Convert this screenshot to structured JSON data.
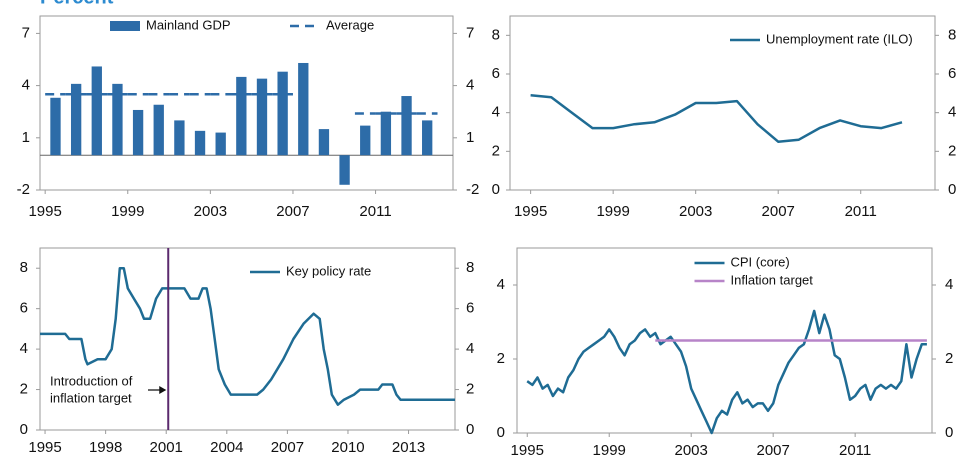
{
  "title": "Percent",
  "chart_data": [
    {
      "type": "bar",
      "legend": "top",
      "x": [
        1995,
        1996,
        1997,
        1998,
        1999,
        2000,
        2001,
        2002,
        2003,
        2004,
        2005,
        2006,
        2007,
        2008,
        2009,
        2010,
        2011,
        2012,
        2013
      ],
      "series": [
        {
          "name": "Mainland GDP",
          "mark": "bar",
          "color": "#2d6ca8",
          "values": [
            3.3,
            4.1,
            5.1,
            4.1,
            2.6,
            2.9,
            2.0,
            1.4,
            1.3,
            4.5,
            4.4,
            4.8,
            5.3,
            1.5,
            -1.7,
            1.7,
            2.5,
            3.4,
            2.0
          ]
        },
        {
          "name": "Average",
          "mark": "line",
          "dash": true,
          "color": "#2d6ca8",
          "values": [
            3.5,
            3.5,
            3.5,
            3.5,
            3.5,
            3.5,
            3.5,
            3.5,
            3.5,
            3.5,
            3.5,
            3.5,
            null,
            null,
            null,
            2.4,
            2.4,
            2.4,
            2.4
          ]
        }
      ],
      "xlim": [
        1994.75,
        2014.75
      ],
      "xticks": [
        1995,
        1999,
        2003,
        2007,
        2011
      ],
      "ylim": [
        -2,
        8
      ],
      "yticks": [
        -2,
        1,
        4,
        7
      ],
      "y2lim": [
        -2,
        8
      ],
      "y2ticks": [
        -2,
        1,
        4,
        7
      ]
    },
    {
      "type": "line",
      "legend": "upper right",
      "x": [
        1995,
        1996,
        1997,
        1998,
        1999,
        2000,
        2001,
        2002,
        2003,
        2004,
        2005,
        2006,
        2007,
        2008,
        2009,
        2010,
        2011,
        2012,
        2013
      ],
      "series": [
        {
          "name": "Unemployment rate (ILO)",
          "color": "#1f6c94",
          "values": [
            4.9,
            4.8,
            4.0,
            3.2,
            3.2,
            3.4,
            3.5,
            3.9,
            4.5,
            4.5,
            4.6,
            3.4,
            2.5,
            2.6,
            3.2,
            3.6,
            3.3,
            3.2,
            3.5
          ]
        }
      ],
      "xlim": [
        1994,
        2014.6
      ],
      "xticks": [
        1995,
        1999,
        2003,
        2007,
        2011
      ],
      "ylim": [
        0,
        9
      ],
      "yticks": [
        0,
        2,
        4,
        6,
        8
      ],
      "y2lim": [
        0,
        9
      ],
      "y2ticks": [
        0,
        2,
        4,
        6,
        8
      ]
    },
    {
      "type": "line",
      "legend": "upper right",
      "series": [
        {
          "name": "Key policy rate",
          "color": "#1f6c94",
          "x": [
            1994.75,
            1996,
            1996.2,
            1996.8,
            1997,
            1997.1,
            1997.6,
            1998,
            1998.3,
            1998.5,
            1998.7,
            1998.9,
            1999.1,
            1999.4,
            1999.7,
            1999.9,
            2000.2,
            2000.5,
            2000.8,
            2001,
            2001.5,
            2001.9,
            2002.2,
            2002.6,
            2002.8,
            2003,
            2003.2,
            2003.4,
            2003.6,
            2003.9,
            2004.2,
            2005.5,
            2005.8,
            2006.2,
            2006.8,
            2007.3,
            2007.8,
            2008.3,
            2008.6,
            2008.8,
            2009,
            2009.2,
            2009.5,
            2009.8,
            2010.3,
            2010.6,
            2011.5,
            2011.7,
            2012.2,
            2012.4,
            2012.6,
            2015.3
          ],
          "values": [
            4.75,
            4.75,
            4.5,
            4.5,
            3.5,
            3.25,
            3.5,
            3.5,
            4.0,
            5.5,
            8,
            8,
            7,
            6.5,
            6,
            5.5,
            5.5,
            6.5,
            7,
            7,
            7,
            7,
            6.5,
            6.5,
            7,
            7,
            6,
            4.5,
            3,
            2.25,
            1.75,
            1.75,
            2,
            2.5,
            3.5,
            4.5,
            5.25,
            5.75,
            5.5,
            4,
            3,
            1.75,
            1.25,
            1.5,
            1.75,
            2,
            2,
            2.25,
            2.25,
            1.75,
            1.5,
            1.5
          ]
        }
      ],
      "vline": 2001.1,
      "vline_color": "#5b2a6e",
      "annotation": [
        "Introduction of",
        "inflation target"
      ],
      "xlim": [
        1994.75,
        2015.3
      ],
      "xticks": [
        1995,
        1998,
        2001,
        2004,
        2007,
        2010,
        2013
      ],
      "ylim": [
        0,
        9
      ],
      "yticks": [
        0,
        2,
        4,
        6,
        8
      ],
      "y2lim": [
        0,
        9
      ],
      "y2ticks": [
        0,
        2,
        4,
        6,
        8
      ]
    },
    {
      "type": "line",
      "legend": "upper center",
      "series": [
        {
          "name": "CPI (core)",
          "color": "#1f6c94",
          "x": [
            1995,
            1995.25,
            1995.5,
            1995.75,
            1996,
            1996.25,
            1996.5,
            1996.75,
            1997,
            1997.25,
            1997.5,
            1997.75,
            1998,
            1998.25,
            1998.5,
            1998.75,
            1999,
            1999.25,
            1999.5,
            1999.75,
            2000,
            2000.25,
            2000.5,
            2000.75,
            2001,
            2001.25,
            2001.5,
            2001.75,
            2002,
            2002.25,
            2002.5,
            2002.75,
            2003,
            2003.25,
            2003.5,
            2003.75,
            2004,
            2004.25,
            2004.5,
            2004.75,
            2005,
            2005.25,
            2005.5,
            2005.75,
            2006,
            2006.25,
            2006.5,
            2006.75,
            2007,
            2007.25,
            2007.5,
            2007.75,
            2008,
            2008.25,
            2008.5,
            2008.75,
            2009,
            2009.25,
            2009.5,
            2009.75,
            2010,
            2010.25,
            2010.5,
            2010.75,
            2011,
            2011.25,
            2011.5,
            2011.75,
            2012,
            2012.25,
            2012.5,
            2012.75,
            2013,
            2013.25,
            2013.5,
            2013.75,
            2014,
            2014.25,
            2014.5
          ],
          "values": [
            1.4,
            1.3,
            1.5,
            1.2,
            1.3,
            1.0,
            1.2,
            1.1,
            1.5,
            1.7,
            2.0,
            2.2,
            2.3,
            2.4,
            2.5,
            2.6,
            2.8,
            2.6,
            2.3,
            2.1,
            2.4,
            2.5,
            2.7,
            2.8,
            2.6,
            2.7,
            2.4,
            2.5,
            2.6,
            2.4,
            2.2,
            1.8,
            1.2,
            0.9,
            0.6,
            0.3,
            0,
            0.4,
            0.6,
            0.5,
            0.9,
            1.1,
            0.8,
            0.9,
            0.7,
            0.8,
            0.8,
            0.6,
            0.8,
            1.3,
            1.6,
            1.9,
            2.1,
            2.3,
            2.4,
            2.8,
            3.3,
            2.7,
            3.2,
            2.8,
            2.1,
            2.0,
            1.5,
            0.9,
            1.0,
            1.2,
            1.3,
            0.9,
            1.2,
            1.3,
            1.2,
            1.3,
            1.2,
            1.4,
            2.4,
            1.5,
            2.0,
            2.4,
            2.4
          ]
        },
        {
          "name": "Inflation target",
          "color": "#b784c8",
          "x": [
            2001.25,
            2014.5
          ],
          "values": [
            2.5,
            2.5
          ]
        }
      ],
      "xlim": [
        1994.5,
        2014.75
      ],
      "xticks": [
        1995,
        1999,
        2003,
        2007,
        2011
      ],
      "ylim": [
        0,
        5
      ],
      "yticks": [
        0,
        2,
        4
      ],
      "y2lim": [
        0,
        5
      ],
      "y2ticks": [
        0,
        2,
        4
      ]
    }
  ]
}
